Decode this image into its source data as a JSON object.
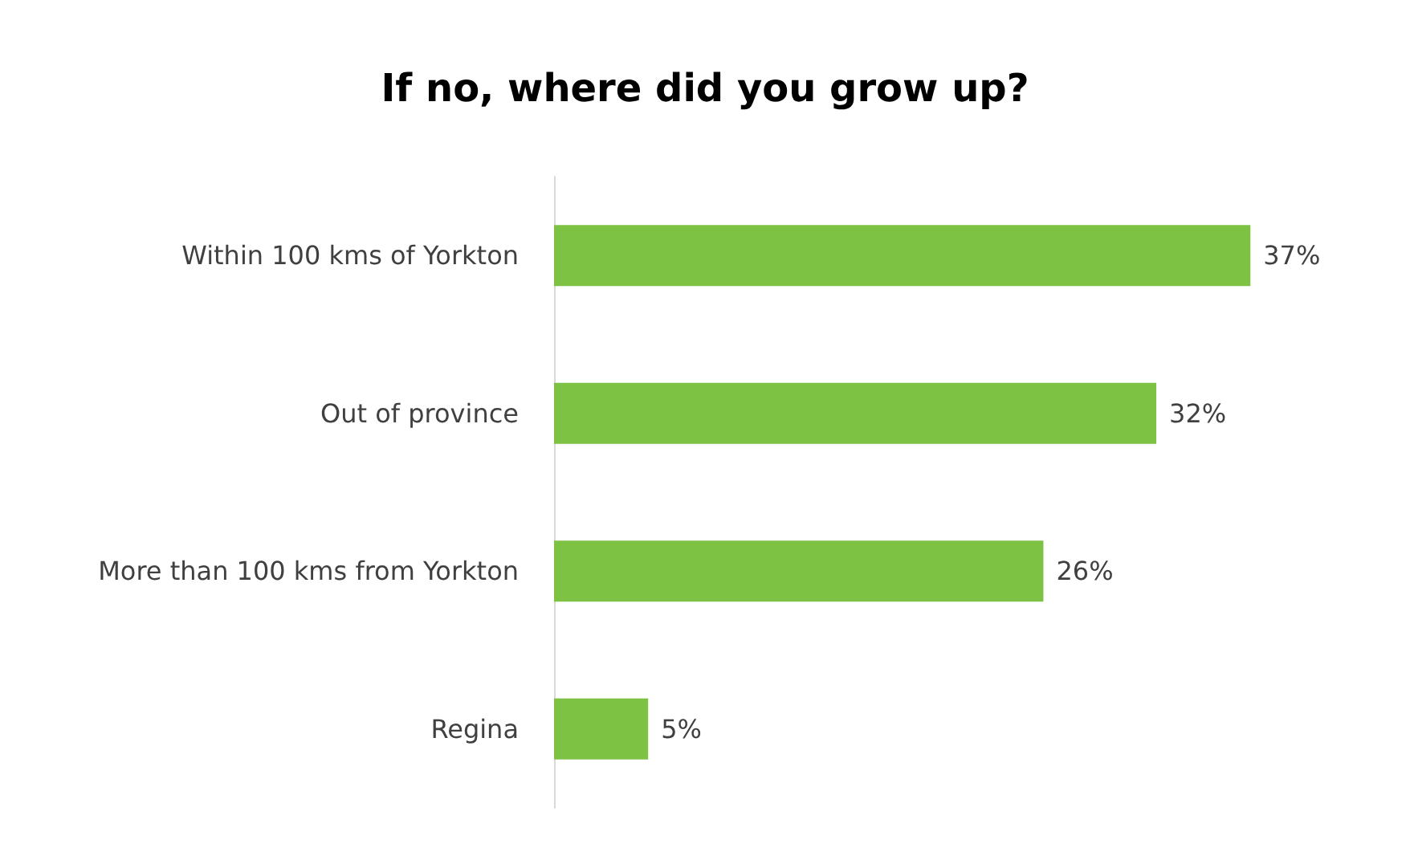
{
  "chart_data": {
    "type": "bar",
    "orientation": "horizontal",
    "title": "If no, where did you grow up?",
    "categories": [
      "Within 100 kms of Yorkton",
      "Out of province",
      "More than 100 kms from Yorkton",
      "Regina"
    ],
    "values": [
      37,
      32,
      26,
      5
    ],
    "value_labels": [
      "37%",
      "32%",
      "26%",
      "5%"
    ],
    "color": "#7dc242"
  }
}
